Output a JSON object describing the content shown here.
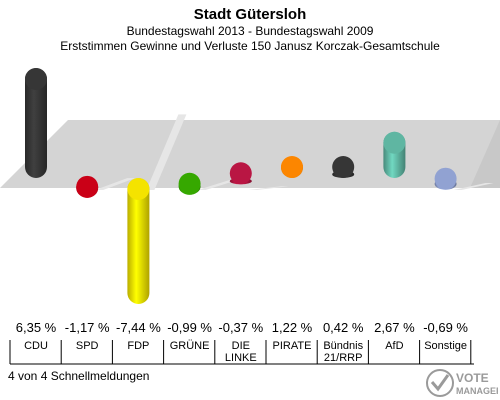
{
  "header": {
    "title": "Stadt Gütersloh",
    "subtitle1": "Bundestagswahl 2013 - Bundestagswahl 2009",
    "subtitle2": "Erststimmen Gewinne und Verluste 150 Janusz Korczak-Gesamtschule"
  },
  "footer": {
    "text": "4 von 4 Schnellmeldungen"
  },
  "logo": {
    "line1": "VOTE",
    "line2": "MANAGER"
  },
  "chart_data": {
    "type": "bar",
    "categories": [
      [
        "CDU"
      ],
      [
        "SPD"
      ],
      [
        "FDP"
      ],
      [
        "GRÜNE"
      ],
      [
        "DIE",
        "LINKE"
      ],
      [
        "PIRATE"
      ],
      [
        "Bündnis",
        "21/RRP"
      ],
      [
        "AfD"
      ],
      [
        "Sonstige"
      ]
    ],
    "values": [
      6.35,
      -1.17,
      -7.44,
      -0.99,
      -0.37,
      1.22,
      0.42,
      2.67,
      -0.69
    ],
    "value_labels": [
      "6,35 %",
      "-1,17 %",
      "-7,44 %",
      "-0,99 %",
      "-0,37 %",
      "1,22 %",
      "0,42 %",
      "2,67 %",
      "-0,69 %"
    ],
    "colors": [
      "#333333",
      "#c00016",
      "#e8d800",
      "#33a000",
      "#b01540",
      "#f08000",
      "#333333",
      "#5aad9a",
      "#8a9ac8"
    ],
    "ylim": [
      -7.44,
      6.35
    ],
    "baseline": 0
  }
}
